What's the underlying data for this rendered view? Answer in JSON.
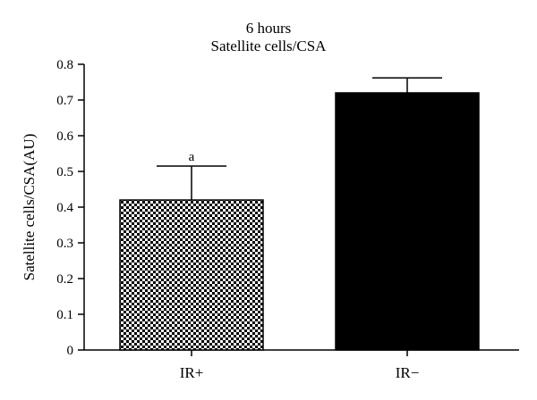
{
  "chart_data": {
    "type": "bar",
    "title": "6 hours",
    "subtitle": "Satellite cells/CSA",
    "xlabel": "",
    "ylabel": "Satellite cells/CSA(AU)",
    "categories": [
      "IR+",
      "IR−"
    ],
    "values": [
      0.42,
      0.72
    ],
    "error_upper": [
      0.515,
      0.762
    ],
    "annotations": [
      "a",
      ""
    ],
    "bar_fills": [
      "checkerboard",
      "#000000"
    ],
    "ylim": [
      0,
      0.8
    ],
    "yticks": [
      "0",
      "0.1",
      "0.2",
      "0.3",
      "0.4",
      "0.5",
      "0.6",
      "0.7",
      "0.8"
    ],
    "grid": false
  }
}
